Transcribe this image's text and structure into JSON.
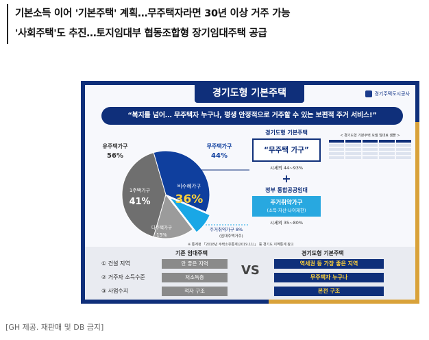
{
  "headline": {
    "line1": "기본소득 이어 '기본주택' 계획…무주택자라면 30년 이상 거주 가능",
    "line2": "'사회주택'도 추진…토지임대부 협동조합형 장기임대주택 공급"
  },
  "poster": {
    "title": "경기도형  기본주택",
    "logo_text": "경기주택도시공사",
    "slogan": "“복지를 넘어… 무주택자 누구나, 평생 안정적으로 거주할 수 있는 보편적 주거 서비스!”",
    "source_note": "※ 통계청 「2018년 주택소유통계(2019.11)」 등  경기도 지역통계 참고",
    "right": {
      "box_title": "경기도형 기본주택",
      "box_text": "“무주택 가구”",
      "box_sub": "시세의 44~93%",
      "plus": "+",
      "box2_title": "정부 통합공공임대",
      "box2_line1": "주거취약가구",
      "box2_line2": "(소득·자산·나이제한)",
      "box2_sub": "시세의 35~80%"
    },
    "mini_table_title": "< 경기도형 기본주택 모델 임대료 샘플 >",
    "comparison": {
      "left_head": "기존 임대주택",
      "right_head": "경기도형 기본주택",
      "vs": "VS",
      "rows": [
        {
          "label": "① 건설 지역",
          "old": "안 좋은 지역",
          "new": "역세권 등 가장 좋은 지역"
        },
        {
          "label": "② 거주자 소득수준",
          "old": "저소득층",
          "new": "무주택자 누구나"
        },
        {
          "label": "③ 사업수지",
          "old": "적자 구조",
          "new": "본전 구조"
        }
      ]
    }
  },
  "chart_data": {
    "type": "pie",
    "slices": [
      {
        "label": "1주택가구",
        "value": 41,
        "display": "41%",
        "color": "#6f6f6f"
      },
      {
        "label": "비수혜가구",
        "value": 36,
        "display": "36%",
        "color": "#0f3f9e"
      },
      {
        "label": "주거취약가구",
        "value": 8,
        "display": "8%",
        "note": "(임대주택거주)",
        "color": "#19a7e6"
      },
      {
        "label": "다주택가구",
        "value": 15,
        "display": "15%",
        "color": "#9b9b9b"
      }
    ],
    "groups": [
      {
        "label": "유주택가구",
        "value": "56%"
      },
      {
        "label": "무주택가구",
        "value": "44%"
      }
    ]
  },
  "credit": "[GH 제공. 재판매 및 DB 금지]"
}
